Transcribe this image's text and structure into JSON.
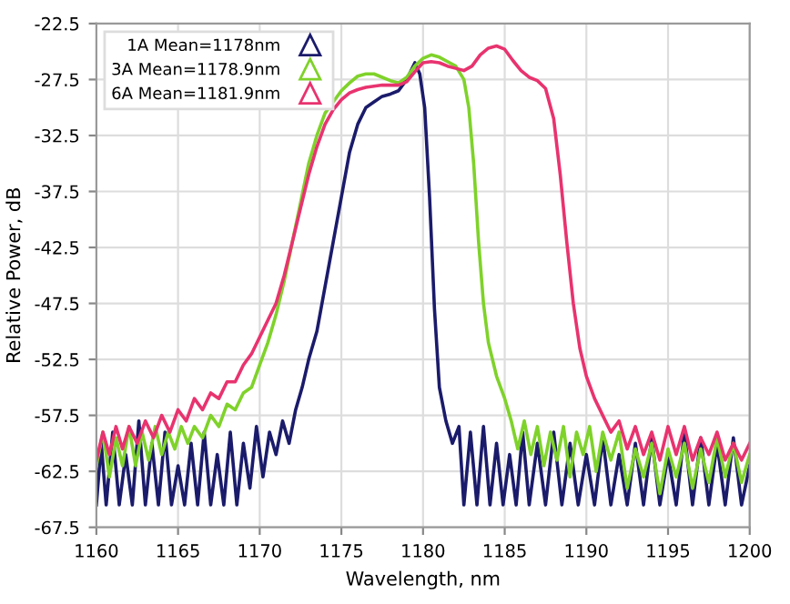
{
  "chart_data": {
    "type": "line",
    "xlabel": "Wavelength, nm",
    "ylabel": "Relative Power, dB",
    "xlim": [
      1160,
      1200
    ],
    "xticks": [
      1160,
      1165,
      1170,
      1175,
      1180,
      1185,
      1190,
      1195,
      1200
    ],
    "ylim": [
      -67.5,
      -22.5
    ],
    "yticks": [
      -22.5,
      -27.5,
      -32.5,
      -37.5,
      -42.5,
      -47.5,
      -52.5,
      -57.5,
      -62.5,
      -67.5
    ],
    "grid": true,
    "legend": "top left",
    "marker": "none",
    "line_style": "solid",
    "series": [
      {
        "name": "1A Mean=1178nm",
        "color": "#1b1b6b",
        "x": [
          1160,
          1160.3,
          1160.6,
          1161,
          1161.4,
          1161.8,
          1162.2,
          1162.6,
          1163,
          1163.4,
          1163.8,
          1164.2,
          1164.6,
          1165,
          1165.4,
          1165.8,
          1166.2,
          1166.6,
          1167,
          1167.4,
          1167.8,
          1168.2,
          1168.6,
          1169,
          1169.4,
          1169.8,
          1170.2,
          1170.6,
          1171,
          1171.4,
          1171.8,
          1172.2,
          1172.6,
          1173,
          1173.5,
          1174,
          1174.5,
          1175,
          1175.5,
          1176,
          1176.5,
          1177,
          1177.5,
          1178,
          1178.5,
          1179,
          1179.5,
          1179.8,
          1180.1,
          1180.4,
          1180.7,
          1181,
          1181.4,
          1181.8,
          1182.2,
          1182.5,
          1182.9,
          1183.3,
          1183.7,
          1184.1,
          1184.5,
          1184.9,
          1185.3,
          1185.7,
          1186.1,
          1186.5,
          1187,
          1187.5,
          1188,
          1188.5,
          1189,
          1189.5,
          1190,
          1190.5,
          1191,
          1191.5,
          1192,
          1192.5,
          1193,
          1193.5,
          1194,
          1194.5,
          1195,
          1195.5,
          1196,
          1196.5,
          1197,
          1197.5,
          1198,
          1198.5,
          1199,
          1199.5,
          1200
        ],
        "values": [
          -65.5,
          -60,
          -65.5,
          -59,
          -65.5,
          -61,
          -65.5,
          -58,
          -65.5,
          -60,
          -65.5,
          -59,
          -65.5,
          -62,
          -65.5,
          -60,
          -65.5,
          -59,
          -65.5,
          -61,
          -65.5,
          -59,
          -65.5,
          -60,
          -64,
          -58.5,
          -63,
          -59,
          -61,
          -58,
          -60,
          -57,
          -55,
          -52.5,
          -50,
          -46,
          -42,
          -38,
          -34,
          -31.5,
          -30,
          -29.5,
          -29,
          -28.8,
          -28.5,
          -27.5,
          -26,
          -27,
          -30,
          -38,
          -48,
          -55,
          -58,
          -60,
          -58.5,
          -65.5,
          -59,
          -65.5,
          -58.5,
          -65.5,
          -60,
          -65.5,
          -61,
          -65.5,
          -59,
          -65.5,
          -60,
          -65.5,
          -59,
          -65.5,
          -60,
          -65.5,
          -61,
          -65.5,
          -59.5,
          -65.5,
          -61,
          -65.5,
          -60,
          -65.5,
          -59.5,
          -65.5,
          -61,
          -65.5,
          -59,
          -65.5,
          -59.5,
          -65.5,
          -60,
          -65.5,
          -59.5,
          -65.5,
          -62
        ]
      },
      {
        "name": "3A Mean=1178.9nm",
        "color": "#7fd22a",
        "x": [
          1160,
          1160.4,
          1160.8,
          1161.2,
          1161.6,
          1162,
          1162.4,
          1162.8,
          1163.2,
          1163.6,
          1164,
          1164.4,
          1164.8,
          1165.2,
          1165.6,
          1166,
          1166.5,
          1167,
          1167.5,
          1168,
          1168.5,
          1169,
          1169.5,
          1170,
          1170.5,
          1171,
          1171.5,
          1172,
          1172.5,
          1173,
          1173.5,
          1174,
          1174.5,
          1175,
          1175.5,
          1176,
          1176.5,
          1177,
          1177.5,
          1178,
          1178.5,
          1179,
          1179.5,
          1180,
          1180.5,
          1181,
          1181.5,
          1182,
          1182.5,
          1182.8,
          1183.1,
          1183.4,
          1183.7,
          1184,
          1184.5,
          1185,
          1185.4,
          1185.8,
          1186.2,
          1186.6,
          1187,
          1187.4,
          1187.8,
          1188.2,
          1188.6,
          1189,
          1189.4,
          1189.8,
          1190.2,
          1190.6,
          1191,
          1191.5,
          1192,
          1192.5,
          1193,
          1193.5,
          1194,
          1194.5,
          1195,
          1195.5,
          1196,
          1196.5,
          1197,
          1197.5,
          1198,
          1198.5,
          1199,
          1199.5,
          1200
        ],
        "values": [
          -62,
          -59,
          -63,
          -59.5,
          -62,
          -58.5,
          -62,
          -59,
          -61.5,
          -58.5,
          -61,
          -59,
          -60.5,
          -58.5,
          -60,
          -58.5,
          -59.5,
          -57.5,
          -58.5,
          -56.5,
          -57,
          -55.5,
          -55,
          -53,
          -51,
          -48.5,
          -45.5,
          -42,
          -38.5,
          -35,
          -32.5,
          -30.5,
          -29.5,
          -28.5,
          -27.8,
          -27.2,
          -27,
          -27,
          -27.3,
          -27.6,
          -27.8,
          -27.3,
          -26.3,
          -25.6,
          -25.3,
          -25.5,
          -25.9,
          -26.3,
          -27.5,
          -30,
          -35,
          -42,
          -47.5,
          -51,
          -54,
          -56,
          -58,
          -60.5,
          -58,
          -61,
          -58.5,
          -62,
          -59,
          -61.5,
          -58.5,
          -63,
          -59,
          -61,
          -58.5,
          -62.5,
          -59,
          -61.5,
          -59,
          -64,
          -60.5,
          -63,
          -60,
          -64.5,
          -60.5,
          -63,
          -60,
          -64,
          -60.5,
          -63.5,
          -59.5,
          -63,
          -60,
          -63.5,
          -61
        ]
      },
      {
        "name": "6A Mean=1181.9nm",
        "color": "#e8336f",
        "x": [
          1160,
          1160.4,
          1160.8,
          1161.2,
          1161.6,
          1162,
          1162.5,
          1163,
          1163.5,
          1164,
          1164.5,
          1165,
          1165.5,
          1166,
          1166.5,
          1167,
          1167.5,
          1168,
          1168.5,
          1169,
          1169.5,
          1170,
          1170.5,
          1171,
          1171.5,
          1172,
          1172.5,
          1173,
          1173.5,
          1174,
          1174.5,
          1175,
          1175.5,
          1176,
          1176.5,
          1177,
          1177.5,
          1178,
          1178.5,
          1179,
          1179.5,
          1180,
          1180.5,
          1181,
          1181.5,
          1182,
          1182.5,
          1183,
          1183.5,
          1184,
          1184.5,
          1185,
          1185.5,
          1186,
          1186.5,
          1187,
          1187.5,
          1188,
          1188.4,
          1188.8,
          1189.2,
          1189.6,
          1190,
          1190.5,
          1191,
          1191.5,
          1192,
          1192.5,
          1193,
          1193.5,
          1194,
          1194.5,
          1195,
          1195.5,
          1196,
          1196.5,
          1197,
          1197.5,
          1198,
          1198.5,
          1199,
          1199.5,
          1200
        ],
        "values": [
          -61.5,
          -59,
          -61,
          -58.5,
          -60.5,
          -58.5,
          -60,
          -58,
          -59.5,
          -57.5,
          -59,
          -57,
          -58,
          -56,
          -57,
          -55.5,
          -56,
          -54.5,
          -54.5,
          -53,
          -52,
          -50.5,
          -49,
          -47.5,
          -45,
          -42,
          -39,
          -36,
          -33.5,
          -31.5,
          -30.2,
          -29.3,
          -28.7,
          -28.4,
          -28.2,
          -28.1,
          -28,
          -28,
          -28,
          -27.7,
          -26.8,
          -26,
          -25.9,
          -26,
          -26.3,
          -26.5,
          -26.7,
          -26.3,
          -25.3,
          -24.7,
          -24.5,
          -24.8,
          -25.8,
          -26.7,
          -27.3,
          -27.6,
          -28.3,
          -31,
          -36,
          -42,
          -47.5,
          -51.5,
          -54,
          -56,
          -57.5,
          -59,
          -58,
          -60.5,
          -58.5,
          -61,
          -59,
          -61.5,
          -58.5,
          -61,
          -58.5,
          -61.5,
          -59.5,
          -61,
          -59,
          -61.5,
          -60,
          -61.5,
          -60
        ]
      }
    ]
  }
}
